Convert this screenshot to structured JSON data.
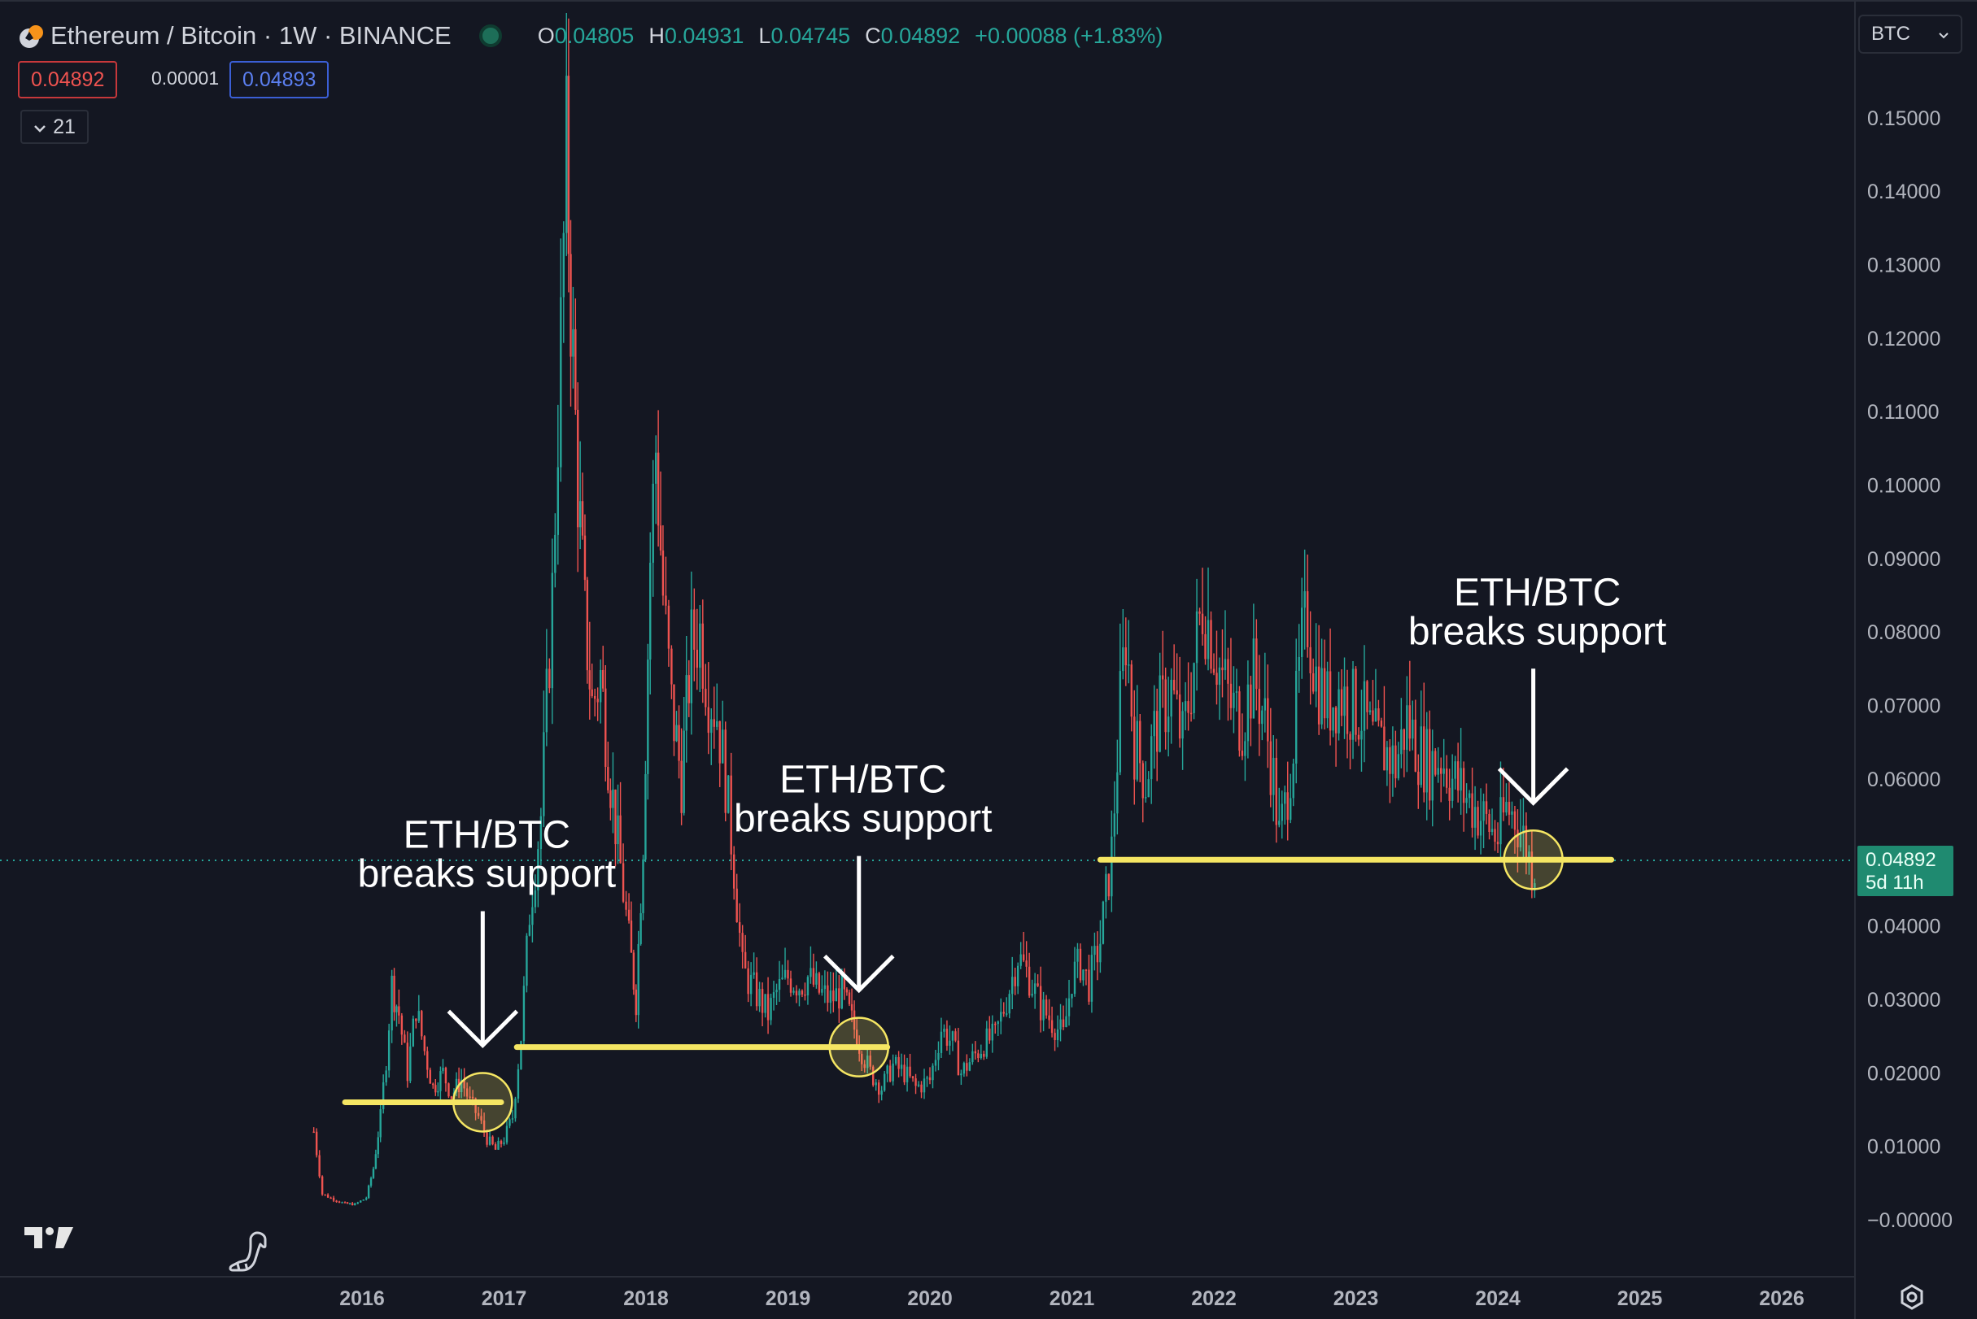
{
  "header": {
    "symbol_title": "Ethereum / Bitcoin · 1W · BINANCE",
    "ohlc": {
      "o_label": "O",
      "o_value": "0.04805",
      "h_label": "H",
      "h_value": "0.04931",
      "l_label": "L",
      "l_value": "0.04745",
      "c_label": "C",
      "c_value": "0.04892",
      "change": "+0.00088 (+1.83%)"
    },
    "sell_price": "0.04892",
    "spread": "0.00001",
    "buy_price": "0.04893",
    "indicators_count": "21"
  },
  "currency_selector": {
    "value": "BTC"
  },
  "last_price_badge": {
    "price": "0.04892",
    "countdown": "5d 11h"
  },
  "colors": {
    "background": "#141722",
    "up": "#26a69a",
    "down": "#ef5350",
    "support_line": "#f5e663",
    "annotation_text": "#ffffff"
  },
  "chart_data": {
    "type": "candlestick",
    "symbol": "ETH/BTC",
    "interval": "1W",
    "exchange": "BINANCE",
    "x_ticks": [
      "2016",
      "2017",
      "2018",
      "2019",
      "2020",
      "2021",
      "2022",
      "2023",
      "2024",
      "2025",
      "2026"
    ],
    "y_ticks": [
      "0.15000",
      "0.14000",
      "0.13000",
      "0.12000",
      "0.11000",
      "0.10000",
      "0.09000",
      "0.08000",
      "0.07000",
      "0.06000",
      "0.04000",
      "0.03000",
      "0.02000",
      "0.01000",
      "−0.00000"
    ],
    "x_range": [
      2015.55,
      2026.45
    ],
    "y_range": [
      -0.004,
      0.158
    ],
    "grid": false,
    "series": [
      {
        "name": "ETH/BTC",
        "points": [
          {
            "date": "2015.66",
            "close": 0.012
          },
          {
            "date": "2015.72",
            "close": 0.0035
          },
          {
            "date": "2015.80",
            "close": 0.0028
          },
          {
            "date": "2015.88",
            "close": 0.0022
          },
          {
            "date": "2015.95",
            "close": 0.0021
          },
          {
            "date": "2016.03",
            "close": 0.003
          },
          {
            "date": "2016.08",
            "close": 0.007
          },
          {
            "date": "2016.13",
            "close": 0.014
          },
          {
            "date": "2016.17",
            "close": 0.022
          },
          {
            "date": "2016.21",
            "close": 0.032
          },
          {
            "date": "2016.26",
            "close": 0.028
          },
          {
            "date": "2016.32",
            "close": 0.02
          },
          {
            "date": "2016.38",
            "close": 0.029
          },
          {
            "date": "2016.44",
            "close": 0.023
          },
          {
            "date": "2016.50",
            "close": 0.018
          },
          {
            "date": "2016.57",
            "close": 0.02
          },
          {
            "date": "2016.63",
            "close": 0.017
          },
          {
            "date": "2016.70",
            "close": 0.019
          },
          {
            "date": "2016.76",
            "close": 0.016
          },
          {
            "date": "2016.82",
            "close": 0.014
          },
          {
            "date": "2016.88",
            "close": 0.011
          },
          {
            "date": "2016.94",
            "close": 0.0095
          },
          {
            "date": "2017.00",
            "close": 0.011
          },
          {
            "date": "2017.06",
            "close": 0.014
          },
          {
            "date": "2017.12",
            "close": 0.025
          },
          {
            "date": "2017.18",
            "close": 0.042
          },
          {
            "date": "2017.26",
            "close": 0.055
          },
          {
            "date": "2017.34",
            "close": 0.085
          },
          {
            "date": "2017.40",
            "close": 0.12
          },
          {
            "date": "2017.44",
            "close": 0.145
          },
          {
            "date": "2017.47",
            "close": 0.125
          },
          {
            "date": "2017.52",
            "close": 0.1
          },
          {
            "date": "2017.57",
            "close": 0.082
          },
          {
            "date": "2017.62",
            "close": 0.07
          },
          {
            "date": "2017.68",
            "close": 0.074
          },
          {
            "date": "2017.75",
            "close": 0.06
          },
          {
            "date": "2017.82",
            "close": 0.048
          },
          {
            "date": "2017.88",
            "close": 0.038
          },
          {
            "date": "2017.93",
            "close": 0.03
          },
          {
            "date": "2017.98",
            "close": 0.052
          },
          {
            "date": "2018.03",
            "close": 0.09
          },
          {
            "date": "2018.07",
            "close": 0.105
          },
          {
            "date": "2018.12",
            "close": 0.085
          },
          {
            "date": "2018.18",
            "close": 0.07
          },
          {
            "date": "2018.25",
            "close": 0.06
          },
          {
            "date": "2018.32",
            "close": 0.078
          },
          {
            "date": "2018.38",
            "close": 0.08
          },
          {
            "date": "2018.44",
            "close": 0.072
          },
          {
            "date": "2018.50",
            "close": 0.069
          },
          {
            "date": "2018.56",
            "close": 0.06
          },
          {
            "date": "2018.62",
            "close": 0.048
          },
          {
            "date": "2018.68",
            "close": 0.034
          },
          {
            "date": "2018.74",
            "close": 0.032
          },
          {
            "date": "2018.80",
            "close": 0.03
          },
          {
            "date": "2018.86",
            "close": 0.028
          },
          {
            "date": "2018.92",
            "close": 0.031
          },
          {
            "date": "2019.00",
            "close": 0.033
          },
          {
            "date": "2019.08",
            "close": 0.032
          },
          {
            "date": "2019.14",
            "close": 0.033
          },
          {
            "date": "2019.22",
            "close": 0.031
          },
          {
            "date": "2019.30",
            "close": 0.03
          },
          {
            "date": "2019.38",
            "close": 0.031
          },
          {
            "date": "2019.45",
            "close": 0.027
          },
          {
            "date": "2019.52",
            "close": 0.023
          },
          {
            "date": "2019.58",
            "close": 0.02
          },
          {
            "date": "2019.66",
            "close": 0.018
          },
          {
            "date": "2019.74",
            "close": 0.021
          },
          {
            "date": "2019.82",
            "close": 0.02
          },
          {
            "date": "2019.90",
            "close": 0.018
          },
          {
            "date": "2020.00",
            "close": 0.019
          },
          {
            "date": "2020.08",
            "close": 0.026
          },
          {
            "date": "2020.16",
            "close": 0.024
          },
          {
            "date": "2020.22",
            "close": 0.02
          },
          {
            "date": "2020.30",
            "close": 0.022
          },
          {
            "date": "2020.38",
            "close": 0.024
          },
          {
            "date": "2020.46",
            "close": 0.025
          },
          {
            "date": "2020.54",
            "close": 0.03
          },
          {
            "date": "2020.62",
            "close": 0.036
          },
          {
            "date": "2020.70",
            "close": 0.033
          },
          {
            "date": "2020.78",
            "close": 0.029
          },
          {
            "date": "2020.86",
            "close": 0.027
          },
          {
            "date": "2020.94",
            "close": 0.025
          },
          {
            "date": "2021.00",
            "close": 0.033
          },
          {
            "date": "2021.06",
            "close": 0.035
          },
          {
            "date": "2021.12",
            "close": 0.032
          },
          {
            "date": "2021.20",
            "close": 0.038
          },
          {
            "date": "2021.28",
            "close": 0.05
          },
          {
            "date": "2021.34",
            "close": 0.07
          },
          {
            "date": "2021.38",
            "close": 0.08
          },
          {
            "date": "2021.44",
            "close": 0.065
          },
          {
            "date": "2021.52",
            "close": 0.06
          },
          {
            "date": "2021.60",
            "close": 0.068
          },
          {
            "date": "2021.70",
            "close": 0.072
          },
          {
            "date": "2021.78",
            "close": 0.065
          },
          {
            "date": "2021.86",
            "close": 0.076
          },
          {
            "date": "2021.92",
            "close": 0.084
          },
          {
            "date": "2021.98",
            "close": 0.08
          },
          {
            "date": "2022.04",
            "close": 0.075
          },
          {
            "date": "2022.12",
            "close": 0.07
          },
          {
            "date": "2022.20",
            "close": 0.068
          },
          {
            "date": "2022.28",
            "close": 0.074
          },
          {
            "date": "2022.36",
            "close": 0.068
          },
          {
            "date": "2022.42",
            "close": 0.06
          },
          {
            "date": "2022.46",
            "close": 0.052
          },
          {
            "date": "2022.50",
            "close": 0.056
          },
          {
            "date": "2022.56",
            "close": 0.065
          },
          {
            "date": "2022.62",
            "close": 0.078
          },
          {
            "date": "2022.66",
            "close": 0.082
          },
          {
            "date": "2022.72",
            "close": 0.074
          },
          {
            "date": "2022.80",
            "close": 0.07
          },
          {
            "date": "2022.88",
            "close": 0.072
          },
          {
            "date": "2022.96",
            "close": 0.07
          },
          {
            "date": "2023.04",
            "close": 0.069
          },
          {
            "date": "2023.12",
            "close": 0.065
          },
          {
            "date": "2023.20",
            "close": 0.064
          },
          {
            "date": "2023.28",
            "close": 0.062
          },
          {
            "date": "2023.36",
            "close": 0.068
          },
          {
            "date": "2023.44",
            "close": 0.064
          },
          {
            "date": "2023.52",
            "close": 0.062
          },
          {
            "date": "2023.60",
            "close": 0.063
          },
          {
            "date": "2023.68",
            "close": 0.06
          },
          {
            "date": "2023.76",
            "close": 0.058
          },
          {
            "date": "2023.84",
            "close": 0.056
          },
          {
            "date": "2023.92",
            "close": 0.054
          },
          {
            "date": "2024.00",
            "close": 0.052
          },
          {
            "date": "2024.06",
            "close": 0.056
          },
          {
            "date": "2024.12",
            "close": 0.055
          },
          {
            "date": "2024.18",
            "close": 0.052
          },
          {
            "date": "2024.24",
            "close": 0.048
          },
          {
            "date": "2024.28",
            "close": 0.0489
          }
        ]
      }
    ],
    "annotations": [
      {
        "line1": "ETH/BTC",
        "line2": "breaks support",
        "year": 2016.85,
        "support": 0.016
      },
      {
        "line1": "ETH/BTC",
        "line2": "breaks support",
        "year": 2019.5,
        "support": 0.0235
      },
      {
        "line1": "ETH/BTC",
        "line2": "breaks support",
        "year": 2024.25,
        "support": 0.049
      }
    ],
    "support_lines": [
      {
        "from": 2015.88,
        "to": 2016.98,
        "value": 0.016
      },
      {
        "from": 2017.09,
        "to": 2019.7,
        "value": 0.0235
      },
      {
        "from": 2021.2,
        "to": 2024.8,
        "value": 0.049
      }
    ]
  }
}
